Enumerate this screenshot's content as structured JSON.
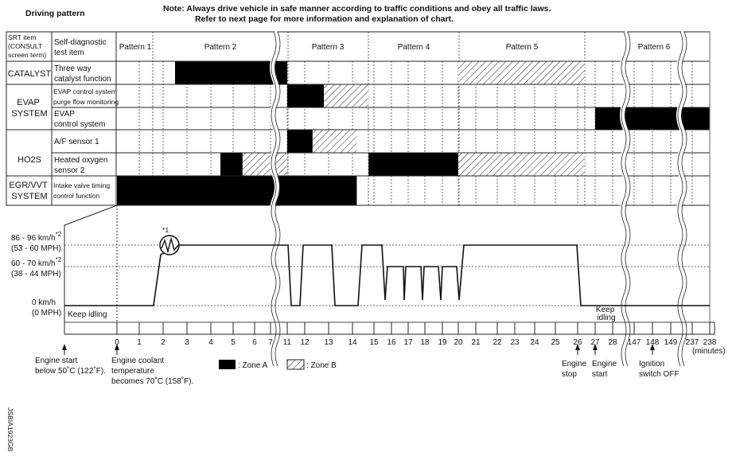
{
  "title": "Driving pattern",
  "note": [
    "Note: Always drive vehicle in safe manner according to traffic conditions and obey all traffic laws.",
    "Refer to next page for more information and explanation of chart."
  ],
  "table": {
    "header": {
      "srt": [
        "SRT item",
        "(CONSULT",
        "screen term)"
      ],
      "test": [
        "Self-diagnostic",
        "test item"
      ],
      "patterns": [
        "Pattern 1",
        "Pattern 2",
        "Pattern 3",
        "Pattern 4",
        "Pattern 5",
        "Pattern 6"
      ]
    },
    "systems": [
      {
        "name": [
          "CATALYST"
        ]
      },
      {
        "name": [
          "EVAP",
          "SYSTEM"
        ]
      },
      {
        "name": [
          "HO2S"
        ]
      },
      {
        "name": [
          "EGR/VVT",
          "SYSTEM"
        ]
      }
    ],
    "rows": [
      {
        "item": [
          "Three way",
          "catalyst function"
        ],
        "zones": [
          {
            "zone": "A",
            "from": 2.5,
            "to": 11
          },
          {
            "zone": "B",
            "from": 20,
            "to": 26.4
          }
        ]
      },
      {
        "item": [
          "EVAP control system",
          "purge flow monitoring"
        ],
        "zones": [
          {
            "zone": "A",
            "from": 11,
            "to": 12.8
          },
          {
            "zone": "B",
            "from": 12.8,
            "to": 14.75
          }
        ]
      },
      {
        "item": [
          "EVAP",
          "control system"
        ],
        "zones": [
          {
            "zone": "A",
            "from": 27,
            "to": 238
          }
        ]
      },
      {
        "item": [
          "A/F sensor 1"
        ],
        "zones": [
          {
            "zone": "A",
            "from": 11,
            "to": 12.33
          },
          {
            "zone": "B",
            "from": 12.33,
            "to": 14.2
          }
        ]
      },
      {
        "item": [
          "Heated oxygen",
          "sensor 2"
        ],
        "zones": [
          {
            "zone": "A",
            "from": 4.43,
            "to": 5.44
          },
          {
            "zone": "B",
            "from": 5.44,
            "to": 11
          },
          {
            "zone": "A",
            "from": 14.75,
            "to": 20
          },
          {
            "zone": "B",
            "from": 20,
            "to": 26.4
          }
        ]
      },
      {
        "item": [
          "Intake valve timing",
          "control function"
        ],
        "zones": [
          {
            "zone": "A",
            "from": 0,
            "to": 14.2
          }
        ]
      }
    ]
  },
  "speed": {
    "levels": [
      {
        "kmh": "86 - 96 km/h",
        "sup": "*2",
        "mph": "(53 - 60 MPH)"
      },
      {
        "kmh": "60 - 70 km/h",
        "sup": "*2",
        "mph": "(38 - 44 MPH)"
      },
      {
        "kmh": "0 km/h",
        "sup": "",
        "mph": "(0 MPH)"
      }
    ],
    "note_mark": "*1",
    "keep_idling": "Keep idling",
    "keep_idling_2": [
      "Keep",
      "idling"
    ]
  },
  "time_axis": {
    "ticks": [
      "0",
      "1",
      "2",
      "3",
      "4",
      "5",
      "6",
      "7",
      "11",
      "12",
      "13",
      "14",
      "15",
      "16",
      "17",
      "18",
      "19",
      "20",
      "21",
      "22",
      "23",
      "24",
      "25",
      "26",
      "27",
      "28",
      "147",
      "148",
      "149",
      "237",
      "238"
    ],
    "unit": "(minutes)"
  },
  "events": [
    {
      "label": [
        "Engine start",
        "below 50˚C (122˚F)."
      ]
    },
    {
      "label": [
        "Engine coolant",
        "temperature",
        "becomes 70˚C (158˚F)."
      ]
    },
    {
      "label": [
        "Engine",
        "stop"
      ]
    },
    {
      "label": [
        "Engine",
        "start"
      ]
    },
    {
      "label": [
        "Ignition",
        "switch OFF"
      ]
    }
  ],
  "legend": {
    "zone_a": ": Zone A",
    "zone_b": ": Zone B"
  },
  "colors": {
    "zone_a": "#000000",
    "line": "#222222"
  },
  "figure_id": "JSBIA1923GB"
}
